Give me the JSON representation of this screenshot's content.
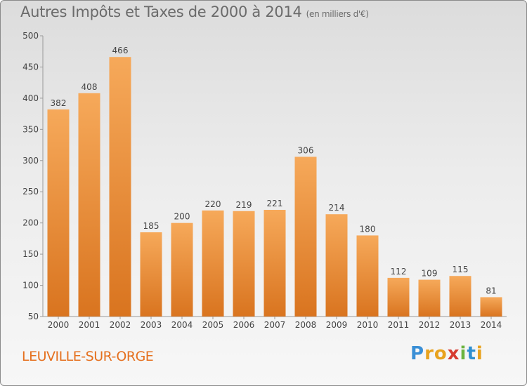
{
  "title": "Autres Impôts et Taxes de 2000 à 2014",
  "title_unit": "(en milliers d'€)",
  "city": "LEUVILLE-SUR-ORGE",
  "logo": {
    "letters": [
      "P",
      "r",
      "o",
      "x",
      "i",
      "t",
      "i"
    ],
    "colors": [
      "#3a8fd6",
      "#e8a21d",
      "#e8a21d",
      "#d63a2f",
      "#6cb33f",
      "#2f8fd0",
      "#e8a21d"
    ]
  },
  "colors": {
    "bar_light": "#f6a95a",
    "bar_dark": "#d9741f",
    "text": "#444444",
    "grid": "#c8c8c8"
  },
  "chart_data": {
    "type": "bar",
    "title": "Autres Impôts et Taxes de 2000 à 2014",
    "categories": [
      "2000",
      "2001",
      "2002",
      "2003",
      "2004",
      "2005",
      "2006",
      "2007",
      "2008",
      "2009",
      "2010",
      "2011",
      "2012",
      "2013",
      "2014"
    ],
    "values": [
      382,
      408,
      466,
      185,
      200,
      220,
      219,
      221,
      306,
      214,
      180,
      112,
      109,
      115,
      81
    ],
    "ylim": [
      50,
      500
    ],
    "yticks": [
      50,
      100,
      150,
      200,
      250,
      300,
      350,
      400,
      450,
      500
    ],
    "grid": false,
    "data_labels": true
  }
}
